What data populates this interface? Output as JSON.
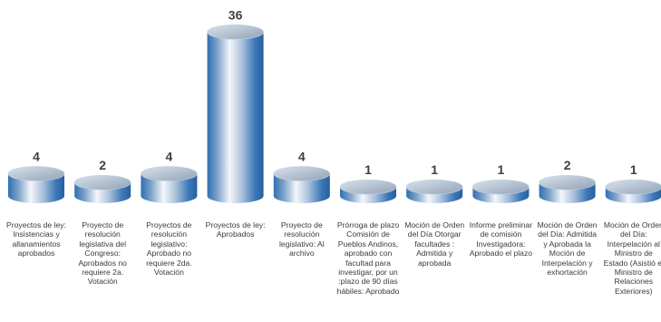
{
  "chart_data": {
    "type": "bar",
    "bar_style": "3d-cylinder",
    "categories": [
      "Proyectos de ley: Insistencias y allanamientos aprobados",
      "Proyecto de resolución legislativa del Congreso: Aprobados no requiere 2a. Votación",
      "Proyectos de resolución legislativo: Aprobado no requiere 2da. Votación",
      "Proyectos de ley: Aprobados",
      "Proyecto de resolución legislativo: Al archivo",
      "Prórroga de plazo Comisión de Pueblos Andinos, aprobado con facultad para investigar, por un :plazo de 90 días hábiles: Aprobado",
      "Moción de Orden del Día Otorgar facultades : Admitida y aprobada",
      "Informe preliminar de comisión Investigadora: Aprobado el plazo",
      "Moción de Orden del Día: Admitida y Aprobada la Moción de Interpelación y exhortación",
      "Moción de Orden del Día: Interpelación al Ministro de Estado (Asistió el Ministro de Relaciones Exteriores)"
    ],
    "values": [
      4,
      2,
      4,
      36,
      4,
      1,
      1,
      1,
      2,
      1
    ],
    "value_labels": [
      "4",
      "2",
      "4",
      "36",
      "4",
      "1",
      "1",
      "1",
      "2",
      "1"
    ],
    "colors": {
      "bar_light": "#eef3f9",
      "bar_mid": "#9fb9d6",
      "bar_dark": "#2f6fb3",
      "value_label": "#404040",
      "category_label": "#3a3a3a"
    },
    "grid": false,
    "legend": "none"
  }
}
